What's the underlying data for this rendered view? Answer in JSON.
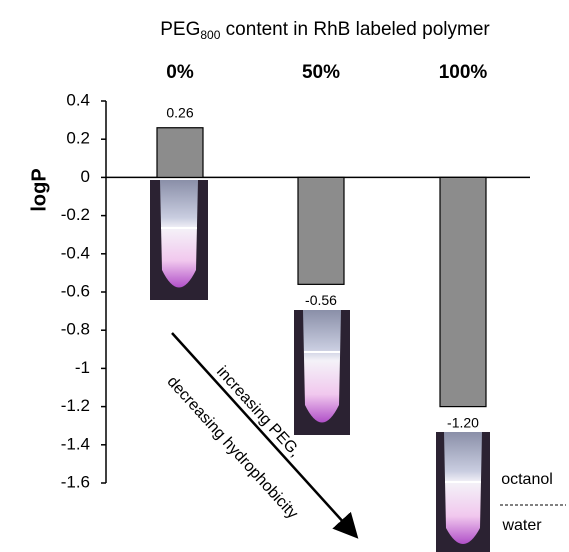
{
  "chart_data": {
    "type": "bar",
    "title_parts": [
      "PEG",
      "800",
      " content in RhB labeled polymer"
    ],
    "y_label": "logP",
    "categories": [
      "0%",
      "50%",
      "100%"
    ],
    "values": [
      0.26,
      -0.56,
      -1.2
    ],
    "value_labels": [
      "0.26",
      "-0.56",
      "-1.20"
    ],
    "color": "#8c8c8c",
    "ylim": [
      -1.6,
      0.4
    ],
    "yticks": [
      0.4,
      0.2,
      0,
      -0.2,
      -0.4,
      -0.6,
      -0.8,
      -1,
      -1.2,
      -1.4,
      -1.6
    ],
    "grid": false,
    "annotations": {
      "arrow_line1": "increasing PEG,",
      "arrow_line2": "decreasing hydrophobicity",
      "top_phase": "octanol",
      "bottom_phase": "water"
    }
  }
}
